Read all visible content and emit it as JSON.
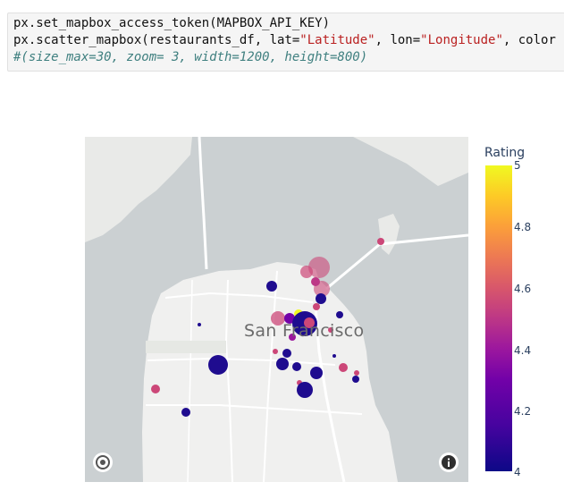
{
  "code": {
    "line1": "px.set_mapbox_access_token(MAPBOX_API_KEY)",
    "line2_prefix": "px.scatter_mapbox(restaurants_df, lat=",
    "line2_lat": "\"Latitude\"",
    "line2_mid": ", lon=",
    "line2_lon": "\"Longitude\"",
    "line2_suffix": ", color",
    "line3_comment": "#(size_max=30, zoom= 3, width=1200, height=800)"
  },
  "map": {
    "city_label": "San Francisco",
    "controls": {
      "logo_icon": "mapbox-logo-icon",
      "info_icon": "info-icon"
    },
    "colors": {
      "water": "#cbd0d2",
      "land": "#f0f0ef",
      "road": "#ffffff"
    }
  },
  "legend": {
    "title": "Rating",
    "ticks": [
      "5",
      "4.8",
      "4.6",
      "4.4",
      "4.2",
      "4"
    ]
  }
}
